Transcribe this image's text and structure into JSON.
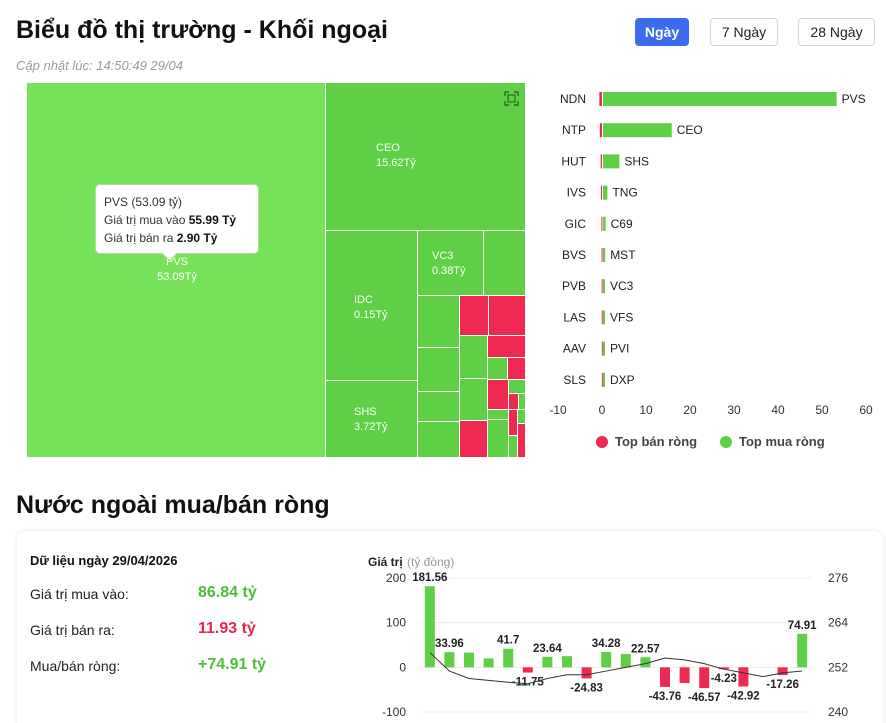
{
  "header": {
    "title": "Biểu đồ thị trường - Khối ngoại",
    "updated": "Cập nhật lúc: 14:50:49 29/04",
    "ranges": [
      "Ngày",
      "7 Ngày",
      "28 Ngày"
    ],
    "active_range": "Ngày"
  },
  "treemap": {
    "tiles": [
      {
        "ticker": "PVS",
        "value": "53.09Tỷ"
      },
      {
        "ticker": "CEO",
        "value": "15.62Tỷ"
      },
      {
        "ticker": "IDC",
        "value": "0.15Tỷ"
      },
      {
        "ticker": "VC3",
        "value": "0.38Tỷ"
      },
      {
        "ticker": "SHS",
        "value": "3.72Tỷ"
      }
    ],
    "tooltip": {
      "title": "PVS (53.09 tỷ)",
      "buy_label": "Giá trị mua vào",
      "buy_value": "55.99 Tỷ",
      "sell_label": "Giá trị bán ra",
      "sell_value": "2.90 Tỷ"
    }
  },
  "chart_data": [
    {
      "type": "bar",
      "orientation": "horizontal",
      "x_ticks": [
        -10,
        0,
        10,
        20,
        30,
        40,
        50,
        60
      ],
      "xlim": [
        -10,
        60
      ],
      "legend_position": "bottom",
      "legend": [
        "Top bán ròng",
        "Top mua ròng"
      ],
      "colors": {
        "sell": "#ee2a52",
        "buy": "#5fcf45"
      },
      "sell_labels": [
        "NDN",
        "NTP",
        "HUT",
        "IVS",
        "GIC",
        "BVS",
        "PVB",
        "LAS",
        "AAV",
        "SLS"
      ],
      "sell_values": [
        -0.6,
        -0.5,
        -0.3,
        -0.25,
        -0.15,
        -0.1,
        -0.08,
        -0.06,
        -0.04,
        -0.03
      ],
      "buy_labels": [
        "PVS",
        "CEO",
        "SHS",
        "TNG",
        "C69",
        "MST",
        "VC3",
        "VFS",
        "PVI",
        "DXP"
      ],
      "buy_values": [
        53.09,
        15.62,
        3.72,
        1.0,
        0.6,
        0.5,
        0.38,
        0.3,
        0.2,
        0.15
      ]
    },
    {
      "type": "bar",
      "ylabel": "Giá trị",
      "ylabel_unit": "(tỷ đồng)",
      "ylim": [
        -100,
        200
      ],
      "y_ticks": [
        -100,
        0,
        100,
        200
      ],
      "y2lim": [
        240,
        276
      ],
      "y2_ticks": [
        240,
        252,
        264,
        276
      ],
      "values": [
        181.56,
        33.96,
        33.0,
        20.0,
        41.7,
        -11.75,
        23.64,
        25.0,
        -24.83,
        34.28,
        30.0,
        22.57,
        -43.76,
        -35.0,
        -46.57,
        -4.23,
        -42.92,
        0,
        -17.26,
        74.91
      ],
      "data_labels": [
        "181.56",
        "33.96",
        "",
        "",
        "41.7",
        "-11.75",
        "23.64",
        "",
        "-24.83",
        "34.28",
        "",
        "22.57",
        "-43.76",
        "",
        "-46.57",
        "-4.23",
        "-42.92",
        "",
        "-17.26",
        "74.91"
      ],
      "line_values": [
        256,
        251,
        249,
        248.5,
        248,
        247.6,
        249,
        250,
        250,
        251,
        252,
        253,
        254.5,
        254,
        253,
        251.5,
        250.5,
        249.5,
        250.5,
        251
      ]
    }
  ],
  "net_panel": {
    "title": "Nước ngoài mua/bán ròng",
    "date_label": "Dữ liệu ngày 29/04/2026",
    "rows": [
      {
        "label": "Giá trị mua vào:",
        "value": "86.84 tỷ"
      },
      {
        "label": "Giá trị bán ra:",
        "value": "11.93 tỷ"
      },
      {
        "label": "Mua/bán ròng:",
        "value": "+74.91 tỷ"
      }
    ]
  }
}
